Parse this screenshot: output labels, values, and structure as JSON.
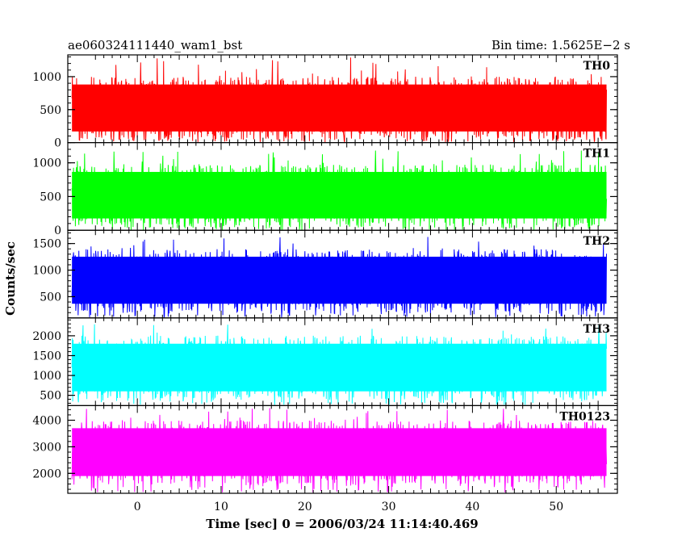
{
  "chart_data": {
    "type": "line",
    "title": "ae060324111440_wam1_bst",
    "bin_time_label": "Bin time: 1.5625E−2 s",
    "xlabel": "Time [sec] 0 = 2006/03/24 11:14:40.469",
    "ylabel": "Counts/sec",
    "xlim": [
      -8.3,
      57.3
    ],
    "data_x_range": [
      -7.8,
      56
    ],
    "x_ticks": [
      0,
      10,
      20,
      30,
      40,
      50
    ],
    "x_tick_labels": [
      "0",
      "10",
      "20",
      "30",
      "40",
      "50"
    ],
    "grid": false,
    "series": [
      {
        "name": "TH0",
        "color": "#ff0000",
        "ylim": [
          0,
          1330
        ],
        "y_ticks": [
          0,
          500,
          1000
        ],
        "y_tick_labels": [
          "0",
          "500",
          "1000"
        ],
        "typical_range": [
          50,
          1000
        ],
        "peak": 1300
      },
      {
        "name": "TH1",
        "color": "#00ff00",
        "ylim": [
          0,
          1300
        ],
        "y_ticks": [
          0,
          500,
          1000
        ],
        "y_tick_labels": [
          "0",
          "500",
          "1000"
        ],
        "typical_range": [
          60,
          980
        ],
        "peak": 1200
      },
      {
        "name": "TH2",
        "color": "#0000ff",
        "ylim": [
          100,
          1750
        ],
        "y_ticks": [
          500,
          1000,
          1500
        ],
        "y_tick_labels": [
          "500",
          "1000",
          "1500"
        ],
        "typical_range": [
          220,
          1400
        ],
        "peak": 1650
      },
      {
        "name": "TH3",
        "color": "#00ffff",
        "ylim": [
          240,
          2450
        ],
        "y_ticks": [
          500,
          1000,
          1500,
          2000
        ],
        "y_tick_labels": [
          "500",
          "1000",
          "1500",
          "2000"
        ],
        "typical_range": [
          400,
          2000
        ],
        "peak": 2300
      },
      {
        "name": "TH0123",
        "color": "#ff00ff",
        "ylim": [
          1250,
          4550
        ],
        "y_ticks": [
          2000,
          3000,
          4000
        ],
        "y_tick_labels": [
          "2000",
          "3000",
          "4000"
        ],
        "typical_range": [
          1600,
          4000
        ],
        "peak": 4500
      }
    ]
  }
}
